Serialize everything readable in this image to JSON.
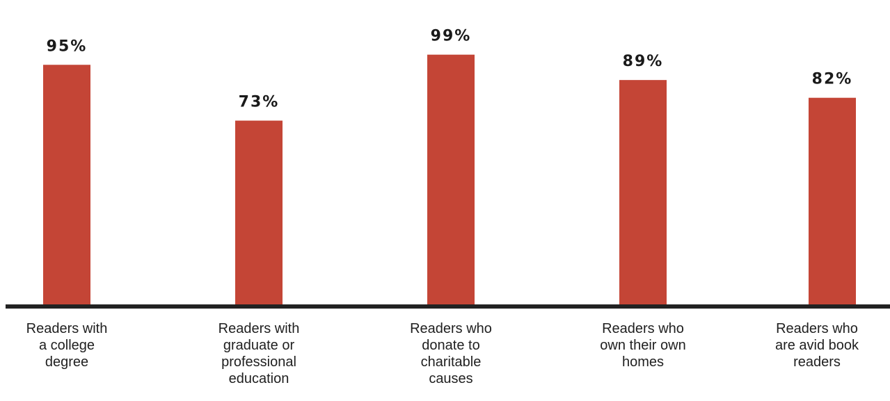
{
  "chart_data": {
    "type": "bar",
    "categories": [
      "Readers with a college degree",
      "Readers with graduate or professional education",
      "Readers who donate to charitable causes",
      "Readers who own their own homes",
      "Readers who are avid book readers"
    ],
    "category_lines": [
      [
        "Readers with",
        "a college",
        "degree"
      ],
      [
        "Readers with",
        "graduate or",
        "professional",
        "education"
      ],
      [
        "Readers who",
        "donate to",
        "charitable",
        "causes"
      ],
      [
        "Readers who",
        "own their own",
        "homes"
      ],
      [
        "Readers who",
        "are avid book",
        "readers"
      ]
    ],
    "values": [
      95,
      73,
      99,
      89,
      82
    ],
    "data_labels": [
      "95%",
      "73%",
      "99%",
      "89%",
      "82%"
    ],
    "title": "",
    "xlabel": "",
    "ylabel": "",
    "ylim": [
      0,
      100
    ],
    "grid": false,
    "legend": "none",
    "bar_color": "#c44536",
    "axis_color": "#222222",
    "label_color": "#1f1f1f"
  }
}
